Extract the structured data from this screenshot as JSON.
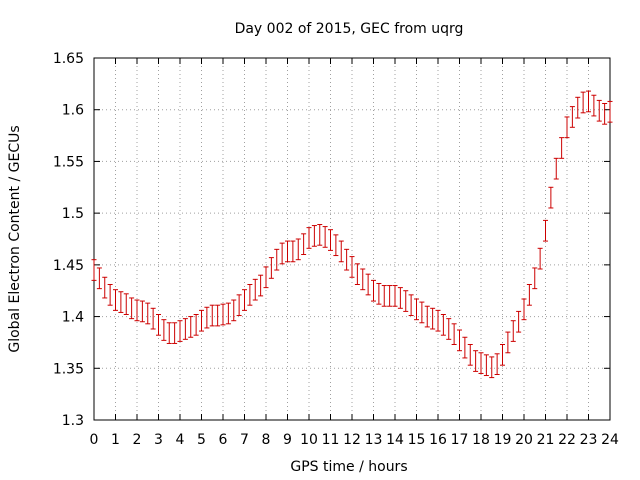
{
  "chart_data": {
    "type": "scatter",
    "title": "Day 002 of 2015, GEC from uqrg",
    "xlabel": "GPS time / hours",
    "ylabel": "Global Electron Content / GECUs",
    "xlim": [
      0,
      24
    ],
    "ylim": [
      1.3,
      1.65
    ],
    "xticks": [
      "0",
      "1",
      "2",
      "3",
      "4",
      "5",
      "6",
      "7",
      "8",
      "9",
      "10",
      "11",
      "12",
      "13",
      "14",
      "15",
      "16",
      "17",
      "18",
      "19",
      "20",
      "21",
      "22",
      "23",
      "24"
    ],
    "yticks": [
      "1.3",
      "1.35",
      "1.4",
      "1.45",
      "1.5",
      "1.55",
      "1.6",
      "1.65"
    ],
    "grid": true,
    "marker_color": "#cc0000",
    "error": 0.01,
    "series": [
      {
        "x": [
          0,
          0.25,
          0.5,
          0.75,
          1,
          1.25,
          1.5,
          1.75,
          2,
          2.25,
          2.5,
          2.75,
          3,
          3.25,
          3.5,
          3.75,
          4,
          4.25,
          4.5,
          4.75,
          5,
          5.25,
          5.5,
          5.75,
          6,
          6.25,
          6.5,
          6.75,
          7,
          7.25,
          7.5,
          7.75,
          8,
          8.25,
          8.5,
          8.75,
          9,
          9.25,
          9.5,
          9.75,
          10,
          10.25,
          10.5,
          10.75,
          11,
          11.25,
          11.5,
          11.75,
          12,
          12.25,
          12.5,
          12.75,
          13,
          13.25,
          13.5,
          13.75,
          14,
          14.25,
          14.5,
          14.75,
          15,
          15.25,
          15.5,
          15.75,
          16,
          16.25,
          16.5,
          16.75,
          17,
          17.25,
          17.5,
          17.75,
          18,
          18.25,
          18.5,
          18.75,
          19,
          19.25,
          19.5,
          19.75,
          20,
          20.25,
          20.5,
          20.75,
          21,
          21.25,
          21.5,
          21.75,
          22,
          22.25,
          22.5,
          22.75,
          23,
          23.25,
          23.5,
          23.75,
          24
        ],
        "y": [
          1.445,
          1.437,
          1.428,
          1.421,
          1.416,
          1.414,
          1.412,
          1.408,
          1.406,
          1.405,
          1.403,
          1.398,
          1.392,
          1.387,
          1.384,
          1.384,
          1.386,
          1.388,
          1.39,
          1.392,
          1.396,
          1.399,
          1.401,
          1.401,
          1.402,
          1.403,
          1.406,
          1.411,
          1.416,
          1.421,
          1.426,
          1.43,
          1.438,
          1.447,
          1.455,
          1.461,
          1.463,
          1.463,
          1.465,
          1.47,
          1.476,
          1.478,
          1.479,
          1.477,
          1.474,
          1.469,
          1.463,
          1.455,
          1.448,
          1.441,
          1.436,
          1.431,
          1.425,
          1.422,
          1.42,
          1.42,
          1.42,
          1.418,
          1.415,
          1.411,
          1.407,
          1.404,
          1.4,
          1.398,
          1.396,
          1.392,
          1.388,
          1.383,
          1.377,
          1.37,
          1.363,
          1.357,
          1.355,
          1.353,
          1.351,
          1.354,
          1.363,
          1.375,
          1.386,
          1.395,
          1.407,
          1.421,
          1.437,
          1.456,
          1.483,
          1.515,
          1.543,
          1.563,
          1.583,
          1.593,
          1.602,
          1.607,
          1.608,
          1.604,
          1.599,
          1.596,
          1.598
        ]
      }
    ]
  }
}
